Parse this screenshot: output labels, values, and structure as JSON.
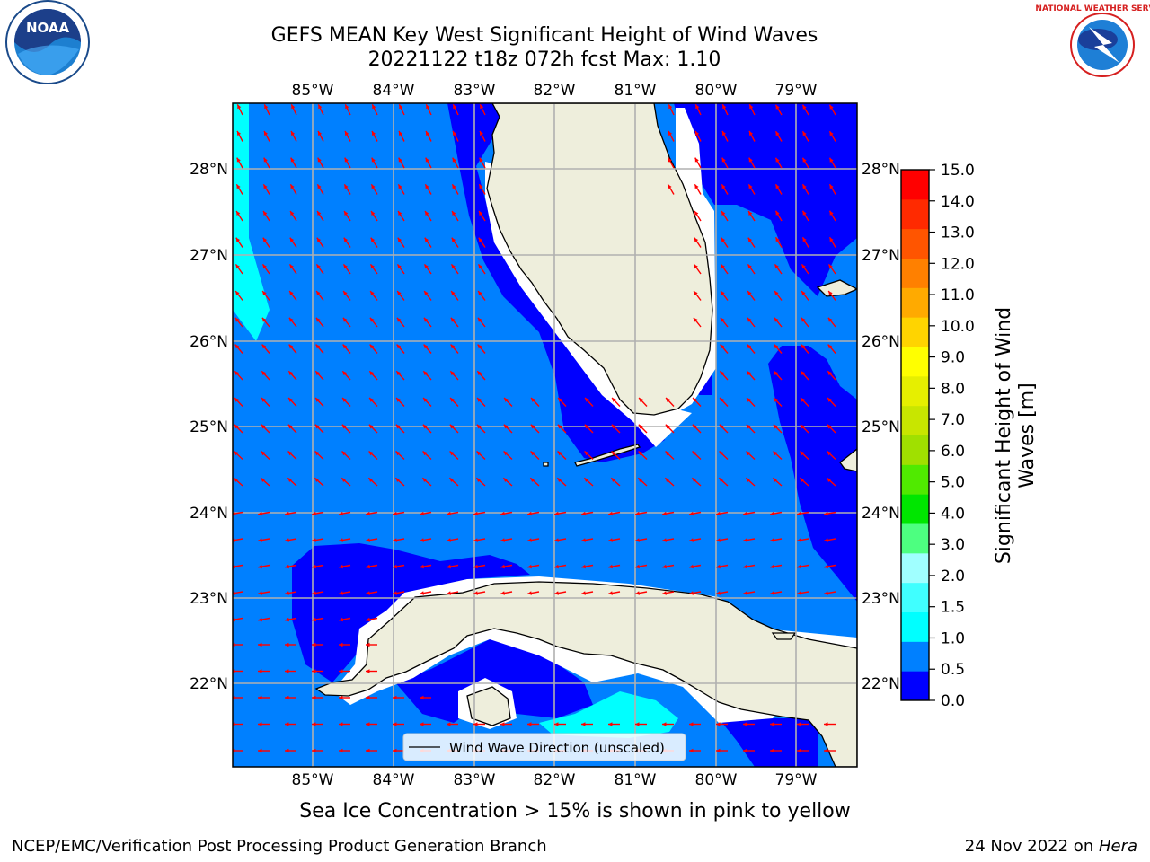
{
  "header": {
    "title_line1": "GEFS MEAN Key West Significant Height of Wind Waves",
    "title_line2": "20221122 t18z 072h fcst   Max: 1.10"
  },
  "logos": {
    "left": {
      "icon": "noaa-logo-icon",
      "text": "NOAA"
    },
    "right": {
      "icon": "nws-logo-icon",
      "text": "NATIONAL WEATHER SERVICE"
    }
  },
  "map": {
    "lon_labels": [
      "85°W",
      "84°W",
      "83°W",
      "82°W",
      "81°W",
      "80°W",
      "79°W"
    ],
    "lat_labels": [
      "28°N",
      "27°N",
      "26°N",
      "25°N",
      "24°N",
      "23°N",
      "22°N"
    ],
    "legend_label": "Wind Wave Direction (unscaled)",
    "colors": {
      "land": "#eeeedc",
      "ocean_low": "#0000ff",
      "ocean_mid": "#0080ff",
      "ocean_high": "#00ffff",
      "arrow": "#ff0000",
      "grid": "#b0b0b0"
    }
  },
  "colorbar": {
    "label_line1": "Significant Height of Wind",
    "label_line2": "Waves [m]",
    "ticks": [
      "15.0",
      "14.0",
      "13.0",
      "12.0",
      "11.0",
      "10.0",
      "9.0",
      "8.0",
      "7.0",
      "6.0",
      "5.0",
      "4.0",
      "3.0",
      "2.0",
      "1.5",
      "1.0",
      "0.5",
      "0.0"
    ],
    "colors": [
      "#0000ff",
      "#0080ff",
      "#00ffff",
      "#40ffff",
      "#a0ffff",
      "#4dff80",
      "#00e600",
      "#50ea00",
      "#a0e000",
      "#c8e600",
      "#e6ef00",
      "#ffff00",
      "#ffd400",
      "#ffaa00",
      "#ff8000",
      "#ff5500",
      "#ff2a00",
      "#ff0000"
    ]
  },
  "caption": "Sea Ice Concentration > 15% is shown in pink to yellow",
  "footer": {
    "left": "NCEP/EMC/Verification Post Processing Product Generation Branch",
    "right_date": "24 Nov 2022 on ",
    "right_host": "Hera"
  }
}
